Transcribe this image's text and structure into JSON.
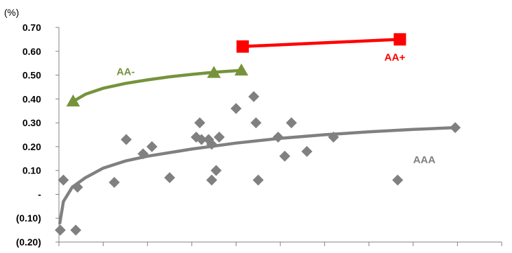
{
  "chart_data": {
    "type": "scatter",
    "title": "",
    "xlabel": "",
    "ylabel": "(%)",
    "xlim": [
      0,
      10
    ],
    "ylim": [
      -0.2,
      0.7
    ],
    "yticks": [
      {
        "value": 0.7,
        "label": "0.70"
      },
      {
        "value": 0.6,
        "label": "0.60"
      },
      {
        "value": 0.5,
        "label": "0.50"
      },
      {
        "value": 0.4,
        "label": "0.40"
      },
      {
        "value": 0.3,
        "label": "0.30"
      },
      {
        "value": 0.2,
        "label": "0.20"
      },
      {
        "value": 0.1,
        "label": "0.10"
      },
      {
        "value": 0.0,
        "label": "-"
      },
      {
        "value": -0.1,
        "label": "(0.10)"
      },
      {
        "value": -0.2,
        "label": "(0.20)"
      }
    ],
    "xticks": [
      0,
      1,
      2,
      3,
      4,
      5,
      6,
      7,
      8,
      9,
      10
    ],
    "grid": false,
    "colors": {
      "aaa": "#808080",
      "aa_minus": "#76933c",
      "aa_plus": "#ff0000"
    },
    "series": [
      {
        "name": "AAA",
        "marker": "diamond",
        "points": [
          [
            0.03,
            -0.15
          ],
          [
            0.1,
            0.06
          ],
          [
            0.38,
            -0.15
          ],
          [
            0.42,
            0.03
          ],
          [
            1.25,
            0.05
          ],
          [
            1.52,
            0.23
          ],
          [
            1.9,
            0.17
          ],
          [
            2.1,
            0.2
          ],
          [
            2.5,
            0.07
          ],
          [
            3.1,
            0.24
          ],
          [
            3.18,
            0.3
          ],
          [
            3.22,
            0.23
          ],
          [
            3.38,
            0.23
          ],
          [
            3.45,
            0.06
          ],
          [
            3.45,
            0.21
          ],
          [
            3.55,
            0.1
          ],
          [
            3.62,
            0.24
          ],
          [
            4.0,
            0.36
          ],
          [
            4.4,
            0.41
          ],
          [
            4.45,
            0.3
          ],
          [
            4.5,
            0.06
          ],
          [
            4.95,
            0.24
          ],
          [
            5.1,
            0.16
          ],
          [
            5.25,
            0.3
          ],
          [
            5.6,
            0.18
          ],
          [
            6.2,
            0.24
          ],
          [
            7.65,
            0.06
          ],
          [
            8.95,
            0.28
          ]
        ],
        "trendline": [
          [
            0.02,
            -0.12
          ],
          [
            0.1,
            -0.03
          ],
          [
            0.3,
            0.03
          ],
          [
            0.6,
            0.07
          ],
          [
            1.0,
            0.11
          ],
          [
            1.5,
            0.14
          ],
          [
            2.0,
            0.16
          ],
          [
            3.0,
            0.19
          ],
          [
            4.0,
            0.215
          ],
          [
            5.0,
            0.235
          ],
          [
            6.0,
            0.25
          ],
          [
            7.0,
            0.262
          ],
          [
            8.0,
            0.272
          ],
          [
            8.95,
            0.28
          ]
        ],
        "label_at": [
          8.0,
          0.13
        ]
      },
      {
        "name": "AA-",
        "marker": "triangle",
        "points": [
          [
            0.32,
            0.39
          ],
          [
            3.5,
            0.51
          ],
          [
            4.12,
            0.52
          ]
        ],
        "curve": [
          [
            0.32,
            0.39
          ],
          [
            0.6,
            0.42
          ],
          [
            1.0,
            0.445
          ],
          [
            1.5,
            0.465
          ],
          [
            2.0,
            0.48
          ],
          [
            2.5,
            0.493
          ],
          [
            3.0,
            0.503
          ],
          [
            3.5,
            0.512
          ],
          [
            4.12,
            0.52
          ]
        ],
        "label_at": [
          1.3,
          0.5
        ]
      },
      {
        "name": "AA+",
        "marker": "square",
        "points": [
          [
            4.15,
            0.62
          ],
          [
            7.7,
            0.65
          ]
        ],
        "label_at": [
          7.35,
          0.56
        ]
      }
    ]
  }
}
